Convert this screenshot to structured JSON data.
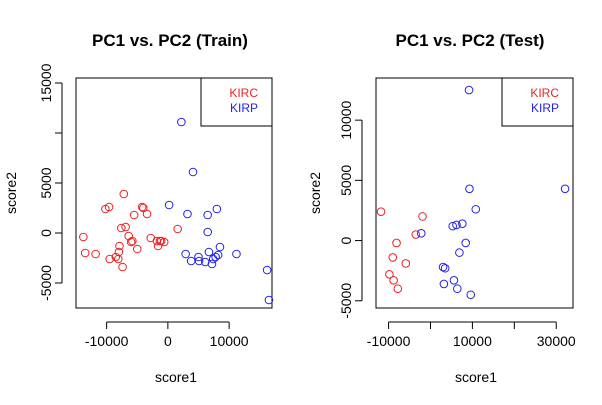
{
  "chart_data": [
    {
      "type": "scatter",
      "title": "PC1 vs. PC2 (Train)",
      "xlabel": "score1",
      "ylabel": "score2",
      "xlim": [
        -15000,
        17000
      ],
      "ylim": [
        -7500,
        15500
      ],
      "x_ticks": [
        -10000,
        0,
        10000
      ],
      "x_tick_labels": [
        "-10000",
        "0",
        "10000"
      ],
      "y_ticks": [
        -5000,
        0,
        5000,
        10000,
        15000
      ],
      "y_tick_labels": [
        "-5000",
        "0",
        "5000",
        "",
        "15000"
      ],
      "legend_position": "top-right",
      "series": [
        {
          "name": "KIRC",
          "color": "#ee2222",
          "points": [
            [
              -13800,
              -400
            ],
            [
              -13500,
              -2000
            ],
            [
              -11800,
              -2100
            ],
            [
              -10200,
              2400
            ],
            [
              -9600,
              2600
            ],
            [
              -9500,
              -2600
            ],
            [
              -8500,
              -2400
            ],
            [
              -8100,
              -2600
            ],
            [
              -8000,
              -1900
            ],
            [
              -7900,
              -1300
            ],
            [
              -7600,
              500
            ],
            [
              -7400,
              -3400
            ],
            [
              -7200,
              3900
            ],
            [
              -6900,
              600
            ],
            [
              -6400,
              -300
            ],
            [
              -6000,
              -900
            ],
            [
              -5800,
              -800
            ],
            [
              -5500,
              1800
            ],
            [
              -5000,
              -1600
            ],
            [
              -4200,
              2600
            ],
            [
              -4000,
              2500
            ],
            [
              -3400,
              1900
            ],
            [
              -2800,
              -500
            ],
            [
              -1800,
              -800
            ],
            [
              -1600,
              -1300
            ],
            [
              -1300,
              -800
            ],
            [
              -1100,
              -800
            ],
            [
              -600,
              -900
            ],
            [
              1600,
              400
            ]
          ]
        },
        {
          "name": "KIRP",
          "color": "#2222ee",
          "points": [
            [
              2200,
              11100
            ],
            [
              4100,
              6100
            ],
            [
              6500,
              1800
            ],
            [
              3200,
              1900
            ],
            [
              200,
              2800
            ],
            [
              8000,
              2400
            ],
            [
              6500,
              100
            ],
            [
              2900,
              -2100
            ],
            [
              3800,
              -2800
            ],
            [
              5000,
              -2400
            ],
            [
              5100,
              -2800
            ],
            [
              6100,
              -2900
            ],
            [
              6700,
              -1900
            ],
            [
              7200,
              -3100
            ],
            [
              7400,
              -2600
            ],
            [
              7800,
              -2400
            ],
            [
              8200,
              -2200
            ],
            [
              8500,
              -1400
            ],
            [
              11200,
              -2100
            ],
            [
              16200,
              -3700
            ],
            [
              16500,
              -6700
            ]
          ]
        }
      ]
    },
    {
      "type": "scatter",
      "title": "PC1 vs. PC2 (Test)",
      "xlabel": "score1",
      "ylabel": "score2",
      "xlim": [
        -13000,
        34000
      ],
      "ylim": [
        -5600,
        13500
      ],
      "x_ticks": [
        -10000,
        0,
        10000,
        20000,
        30000
      ],
      "x_tick_labels": [
        "-10000",
        "",
        "10000",
        "",
        "30000"
      ],
      "y_ticks": [
        -5000,
        0,
        5000,
        10000
      ],
      "y_tick_labels": [
        "-5000",
        "0",
        "5000",
        "10000"
      ],
      "legend_position": "top-right",
      "series": [
        {
          "name": "KIRC",
          "color": "#ee2222",
          "points": [
            [
              -11800,
              2400
            ],
            [
              -9800,
              -2800
            ],
            [
              -9000,
              -1400
            ],
            [
              -8800,
              -3300
            ],
            [
              -8100,
              -200
            ],
            [
              -7800,
              -4000
            ],
            [
              -5900,
              -1900
            ],
            [
              -3500,
              500
            ],
            [
              -1900,
              2000
            ]
          ]
        },
        {
          "name": "KIRP",
          "color": "#2222ee",
          "points": [
            [
              -2200,
              600
            ],
            [
              3000,
              -2200
            ],
            [
              3500,
              -2300
            ],
            [
              3200,
              -3600
            ],
            [
              5600,
              -3300
            ],
            [
              5300,
              1200
            ],
            [
              6200,
              1300
            ],
            [
              6400,
              -4000
            ],
            [
              7600,
              1400
            ],
            [
              8400,
              -200
            ],
            [
              9300,
              4300
            ],
            [
              9200,
              12500
            ],
            [
              9600,
              -4500
            ],
            [
              10800,
              2600
            ],
            [
              6900,
              -1000
            ],
            [
              32100,
              4300
            ]
          ]
        }
      ]
    }
  ]
}
